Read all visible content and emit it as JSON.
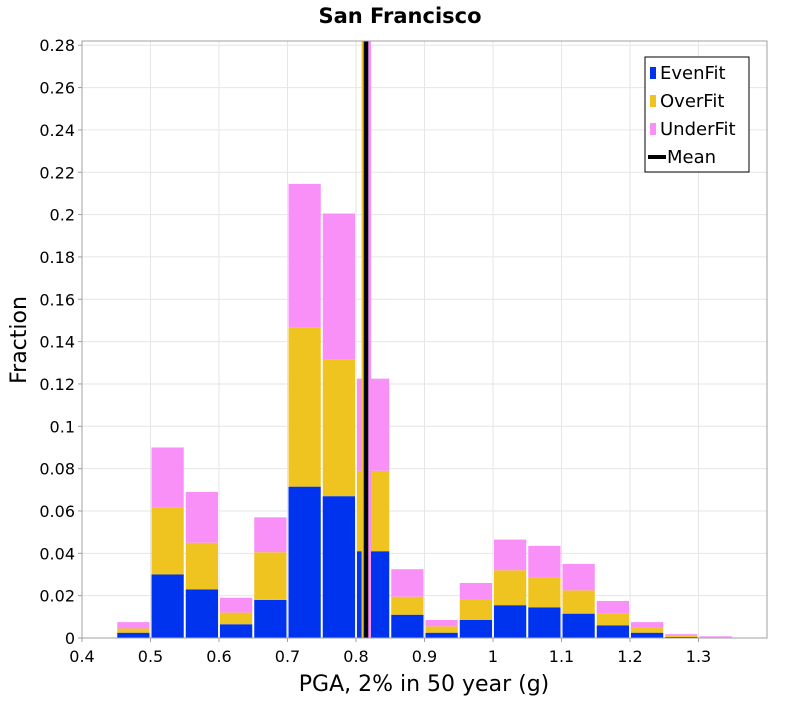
{
  "chart_data": {
    "type": "bar",
    "stacked": true,
    "title": "San Francisco",
    "xlabel": "PGA, 2% in 50 year (g)",
    "ylabel": "Fraction",
    "xlim": [
      0.4,
      1.4
    ],
    "ylim": [
      0,
      0.282
    ],
    "grid": true,
    "legend_position": "top-right",
    "x_ticks": [
      "0.4",
      "0.5",
      "0.6",
      "0.7",
      "0.8",
      "0.9",
      "1",
      "1.1",
      "1.2",
      "1.3"
    ],
    "y_ticks": [
      "0",
      "0.02",
      "0.04",
      "0.06",
      "0.08",
      "0.1",
      "0.12",
      "0.14",
      "0.16",
      "0.18",
      "0.2",
      "0.22",
      "0.24",
      "0.26",
      "0.28"
    ],
    "bin_width": 0.05,
    "x": [
      0.475,
      0.525,
      0.575,
      0.625,
      0.675,
      0.725,
      0.775,
      0.825,
      0.875,
      0.925,
      0.975,
      1.025,
      1.075,
      1.125,
      1.175,
      1.225,
      1.275,
      1.325
    ],
    "series": [
      {
        "name": "EvenFit",
        "color": "#0033ee",
        "values": [
          0.0025,
          0.03,
          0.023,
          0.0065,
          0.018,
          0.0715,
          0.067,
          0.041,
          0.011,
          0.0025,
          0.0085,
          0.0155,
          0.0145,
          0.0115,
          0.006,
          0.0025,
          0.0005,
          0.0002
        ]
      },
      {
        "name": "OverFit",
        "color": "#f0c420",
        "values": [
          0.002,
          0.0315,
          0.022,
          0.0055,
          0.0225,
          0.075,
          0.0645,
          0.038,
          0.0085,
          0.003,
          0.0095,
          0.0165,
          0.014,
          0.011,
          0.0055,
          0.0025,
          0.0005,
          0.0002
        ]
      },
      {
        "name": "UnderFit",
        "color": "#f890f8",
        "values": [
          0.003,
          0.0285,
          0.024,
          0.007,
          0.0165,
          0.068,
          0.069,
          0.0435,
          0.013,
          0.003,
          0.008,
          0.0145,
          0.015,
          0.0125,
          0.006,
          0.0025,
          0.0008,
          0.0004
        ]
      }
    ],
    "mean_lines": [
      {
        "series": "OverFit",
        "x": 0.811,
        "color": "#f0c420"
      },
      {
        "series": "UnderFit",
        "x": 0.819,
        "color": "#f890f8"
      },
      {
        "series": "EvenFit",
        "x": 0.814,
        "color": "#0033ee"
      },
      {
        "series": "Mean",
        "x": 0.815,
        "color": "#000000"
      }
    ],
    "legend": [
      {
        "label": "EvenFit",
        "color": "#0033ee",
        "kind": "box"
      },
      {
        "label": "OverFit",
        "color": "#f0c420",
        "kind": "box"
      },
      {
        "label": "UnderFit",
        "color": "#f890f8",
        "kind": "box"
      },
      {
        "label": "Mean",
        "color": "#000000",
        "kind": "line"
      }
    ]
  }
}
